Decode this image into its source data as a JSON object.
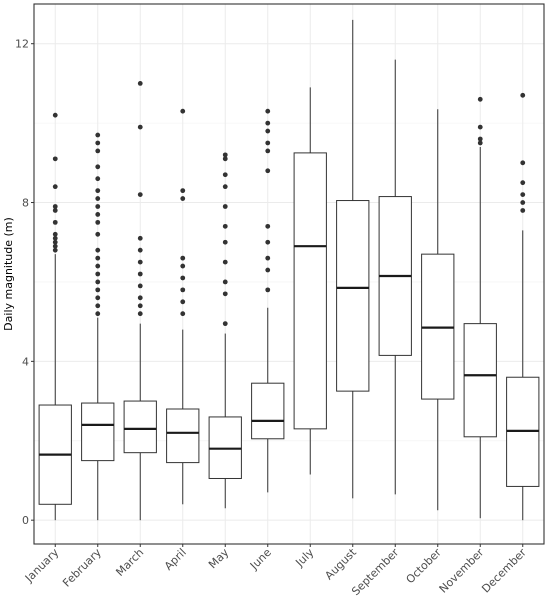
{
  "chart_data": {
    "type": "boxplot",
    "title": "",
    "xlabel": "",
    "ylabel": "Daily magnitude (m)",
    "ylim": [
      -0.6,
      13.0
    ],
    "yticks": [
      0,
      4,
      8,
      12
    ],
    "ytick_labels": [
      "0",
      "4",
      "8",
      "12"
    ],
    "grid": true,
    "categories": [
      "January",
      "February",
      "March",
      "April",
      "May",
      "June",
      "July",
      "August",
      "September",
      "October",
      "November",
      "December"
    ],
    "boxes": [
      {
        "whisker_low": 0.0,
        "q1": 0.4,
        "median": 1.65,
        "q3": 2.9,
        "whisker_high": 6.7,
        "outliers": [
          6.8,
          6.9,
          7.0,
          7.1,
          7.2,
          7.5,
          7.8,
          7.9,
          8.4,
          9.1,
          10.2
        ]
      },
      {
        "whisker_low": 0.0,
        "q1": 1.5,
        "median": 2.4,
        "q3": 2.95,
        "whisker_high": 5.1,
        "outliers": [
          5.2,
          5.4,
          5.6,
          5.8,
          6.0,
          6.2,
          6.4,
          6.6,
          6.8,
          7.2,
          7.5,
          7.7,
          7.9,
          8.1,
          8.3,
          8.6,
          8.9,
          9.3,
          9.5,
          9.7
        ]
      },
      {
        "whisker_low": 0.0,
        "q1": 1.7,
        "median": 2.3,
        "q3": 3.0,
        "whisker_high": 4.95,
        "outliers": [
          5.2,
          5.4,
          5.6,
          5.9,
          6.2,
          6.5,
          6.8,
          7.1,
          8.2,
          9.9,
          11.0
        ]
      },
      {
        "whisker_low": 0.4,
        "q1": 1.45,
        "median": 2.2,
        "q3": 2.8,
        "whisker_high": 4.8,
        "outliers": [
          5.2,
          5.5,
          5.8,
          6.1,
          6.4,
          6.6,
          8.1,
          8.3,
          10.3
        ]
      },
      {
        "whisker_low": 0.3,
        "q1": 1.05,
        "median": 1.8,
        "q3": 2.6,
        "whisker_high": 4.7,
        "outliers": [
          4.95,
          5.7,
          6.0,
          6.5,
          7.0,
          7.4,
          7.9,
          8.4,
          8.7,
          9.1,
          9.2
        ]
      },
      {
        "whisker_low": 0.7,
        "q1": 2.05,
        "median": 2.5,
        "q3": 3.45,
        "whisker_high": 5.35,
        "outliers": [
          5.8,
          6.3,
          6.6,
          7.0,
          7.4,
          8.8,
          9.3,
          9.5,
          9.8,
          10.0,
          10.3
        ]
      },
      {
        "whisker_low": 1.15,
        "q1": 2.3,
        "median": 6.9,
        "q3": 9.25,
        "whisker_high": 10.9,
        "outliers": []
      },
      {
        "whisker_low": 0.55,
        "q1": 3.25,
        "median": 5.85,
        "q3": 8.05,
        "whisker_high": 12.6,
        "outliers": []
      },
      {
        "whisker_low": 0.65,
        "q1": 4.15,
        "median": 6.15,
        "q3": 8.15,
        "whisker_high": 11.6,
        "outliers": []
      },
      {
        "whisker_low": 0.25,
        "q1": 3.05,
        "median": 4.85,
        "q3": 6.7,
        "whisker_high": 10.35,
        "outliers": []
      },
      {
        "whisker_low": 0.05,
        "q1": 2.1,
        "median": 3.65,
        "q3": 4.95,
        "whisker_high": 9.4,
        "outliers": [
          9.5,
          9.6,
          9.9,
          10.6
        ]
      },
      {
        "whisker_low": 0.0,
        "q1": 0.85,
        "median": 2.25,
        "q3": 3.6,
        "whisker_high": 7.3,
        "outliers": [
          7.8,
          8.0,
          8.2,
          8.5,
          9.0,
          10.7
        ]
      }
    ]
  }
}
